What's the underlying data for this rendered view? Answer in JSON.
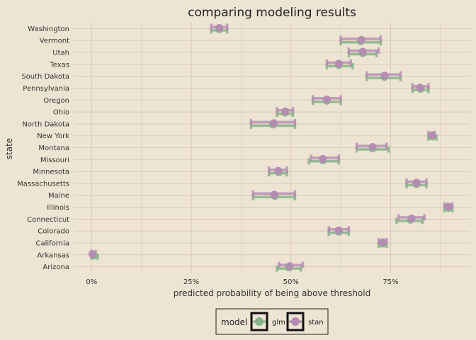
{
  "chart_data": {
    "type": "dot-errorbar",
    "title": "comparing modeling results",
    "xlabel": "predicted probability of being above threshold",
    "ylabel": "state",
    "xlim": [
      -0.045,
      0.95
    ],
    "xticks": [
      0,
      0.25,
      0.5,
      0.75
    ],
    "xtick_labels": [
      "0%",
      "25%",
      "50%",
      "75%"
    ],
    "grid": true,
    "legend": {
      "title": "model",
      "position": "bottom",
      "entries": [
        "glm",
        "stan"
      ]
    },
    "colors": {
      "glm": "#88b38a",
      "stan": "#b48bb3",
      "background": "#ede4d3",
      "grid": "#d7cbb6"
    },
    "categories": [
      "Arizona",
      "Arkansas",
      "California",
      "Colorado",
      "Connecticut",
      "Illinois",
      "Maine",
      "Massachusetts",
      "Minnesota",
      "Missouri",
      "Montana",
      "New York",
      "North Dakota",
      "Ohio",
      "Oregon",
      "Pennsylvania",
      "South Dakota",
      "Texas",
      "Utah",
      "Vermont",
      "Washington"
    ],
    "series": [
      {
        "name": "glm",
        "estimate": [
          0.495,
          0.005,
          0.73,
          0.62,
          0.8,
          0.895,
          0.46,
          0.815,
          0.47,
          0.58,
          0.705,
          0.855,
          0.455,
          0.485,
          0.59,
          0.825,
          0.735,
          0.62,
          0.68,
          0.675,
          0.32
        ],
        "lower": [
          0.465,
          0.0,
          0.72,
          0.595,
          0.765,
          0.885,
          0.405,
          0.79,
          0.445,
          0.545,
          0.665,
          0.845,
          0.4,
          0.465,
          0.555,
          0.805,
          0.69,
          0.59,
          0.645,
          0.625,
          0.3
        ],
        "upper": [
          0.525,
          0.015,
          0.74,
          0.645,
          0.83,
          0.905,
          0.51,
          0.84,
          0.49,
          0.62,
          0.745,
          0.865,
          0.51,
          0.505,
          0.625,
          0.845,
          0.775,
          0.655,
          0.715,
          0.725,
          0.34
        ]
      },
      {
        "name": "stan",
        "estimate": [
          0.497,
          0.002,
          0.73,
          0.62,
          0.803,
          0.895,
          0.458,
          0.815,
          0.468,
          0.58,
          0.705,
          0.855,
          0.457,
          0.486,
          0.59,
          0.824,
          0.735,
          0.62,
          0.68,
          0.677,
          0.32
        ],
        "lower": [
          0.47,
          0.0,
          0.72,
          0.595,
          0.77,
          0.885,
          0.405,
          0.79,
          0.445,
          0.55,
          0.665,
          0.845,
          0.4,
          0.465,
          0.555,
          0.805,
          0.69,
          0.59,
          0.645,
          0.625,
          0.3
        ],
        "upper": [
          0.53,
          0.01,
          0.74,
          0.645,
          0.835,
          0.905,
          0.51,
          0.84,
          0.49,
          0.62,
          0.74,
          0.86,
          0.51,
          0.505,
          0.625,
          0.845,
          0.775,
          0.65,
          0.72,
          0.725,
          0.34
        ]
      }
    ]
  }
}
